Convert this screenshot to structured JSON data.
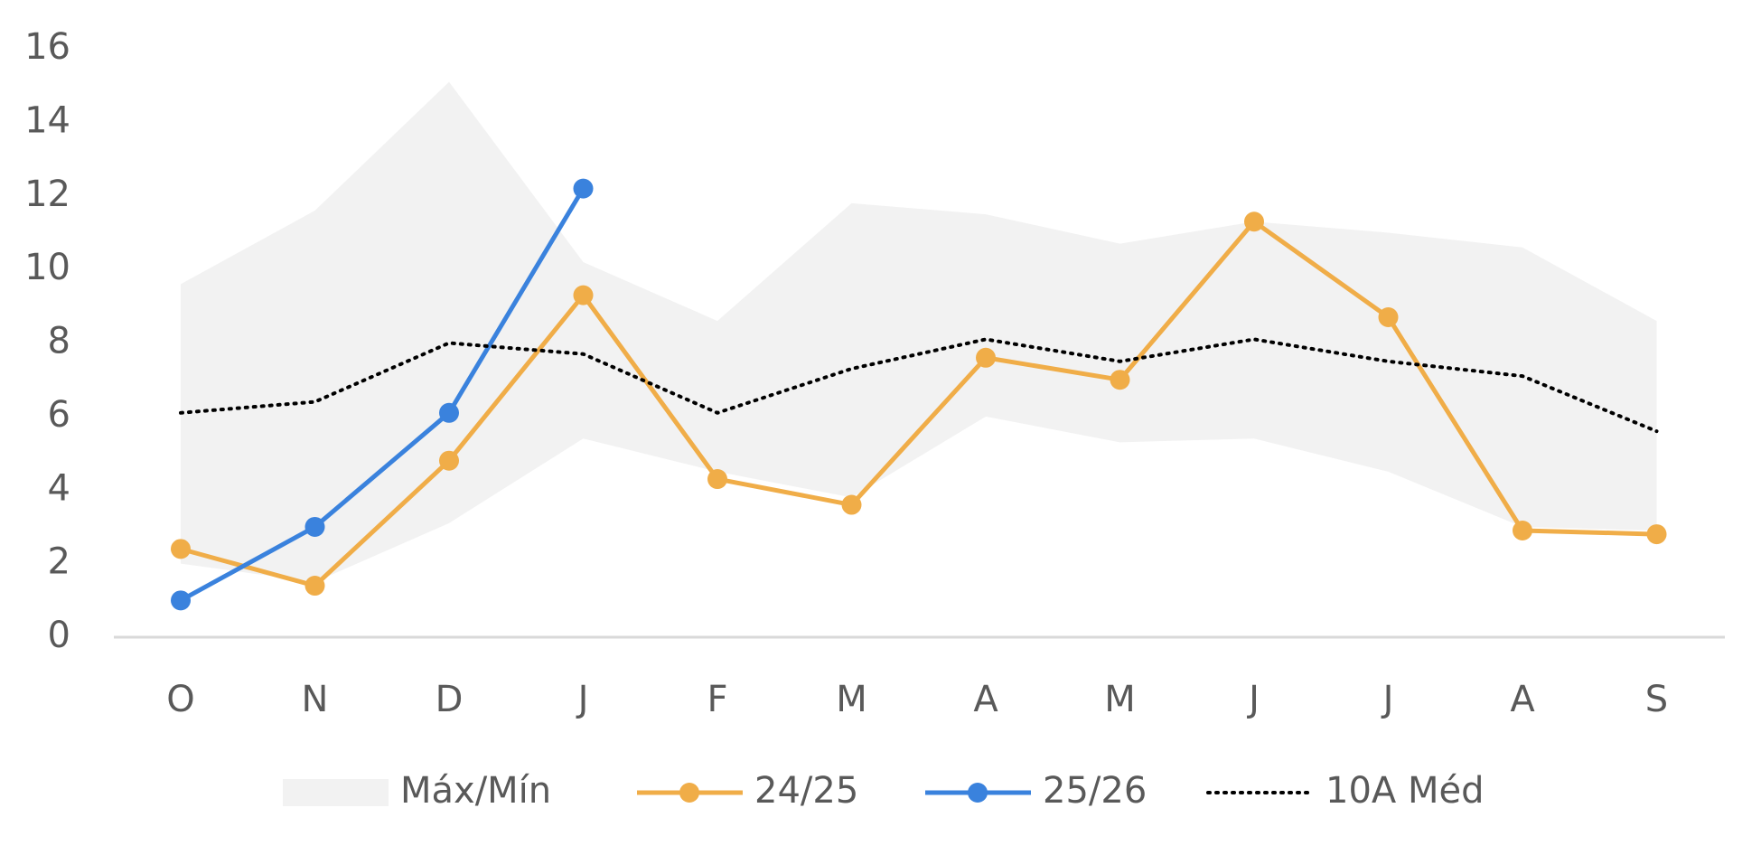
{
  "chart_data": {
    "type": "line",
    "categories": [
      "O",
      "N",
      "D",
      "J",
      "F",
      "M",
      "A",
      "M",
      "J",
      "J",
      "A",
      "S"
    ],
    "ylim": [
      0,
      16
    ],
    "yticks": [
      0,
      2,
      4,
      6,
      8,
      10,
      12,
      14,
      16
    ],
    "legend": "bottom",
    "series": [
      {
        "name": "Máx/Mín",
        "type": "band",
        "color": "#f2f2f2",
        "max": [
          9.6,
          11.6,
          15.1,
          10.2,
          8.6,
          11.8,
          11.5,
          10.7,
          11.3,
          11.0,
          10.6,
          8.6
        ],
        "min": [
          2.0,
          1.5,
          3.1,
          5.4,
          4.5,
          3.8,
          6.0,
          5.3,
          5.4,
          4.5,
          3.0,
          2.9
        ]
      },
      {
        "name": "24/25",
        "type": "line",
        "color": "#f0ad48",
        "marker": true,
        "values": [
          2.4,
          1.4,
          4.8,
          9.3,
          4.3,
          3.6,
          7.6,
          7.0,
          11.3,
          8.7,
          2.9,
          2.8
        ]
      },
      {
        "name": "25/26",
        "type": "line",
        "color": "#3a82dd",
        "marker": true,
        "values": [
          1.0,
          3.0,
          6.1,
          12.2,
          null,
          null,
          null,
          null,
          null,
          null,
          null,
          null
        ]
      },
      {
        "name": "10A Méd",
        "type": "line",
        "color": "#000000",
        "dotted": true,
        "marker": false,
        "values": [
          6.1,
          6.4,
          8.0,
          7.7,
          6.1,
          7.3,
          8.1,
          7.5,
          8.1,
          7.5,
          7.1,
          5.6
        ]
      }
    ]
  }
}
